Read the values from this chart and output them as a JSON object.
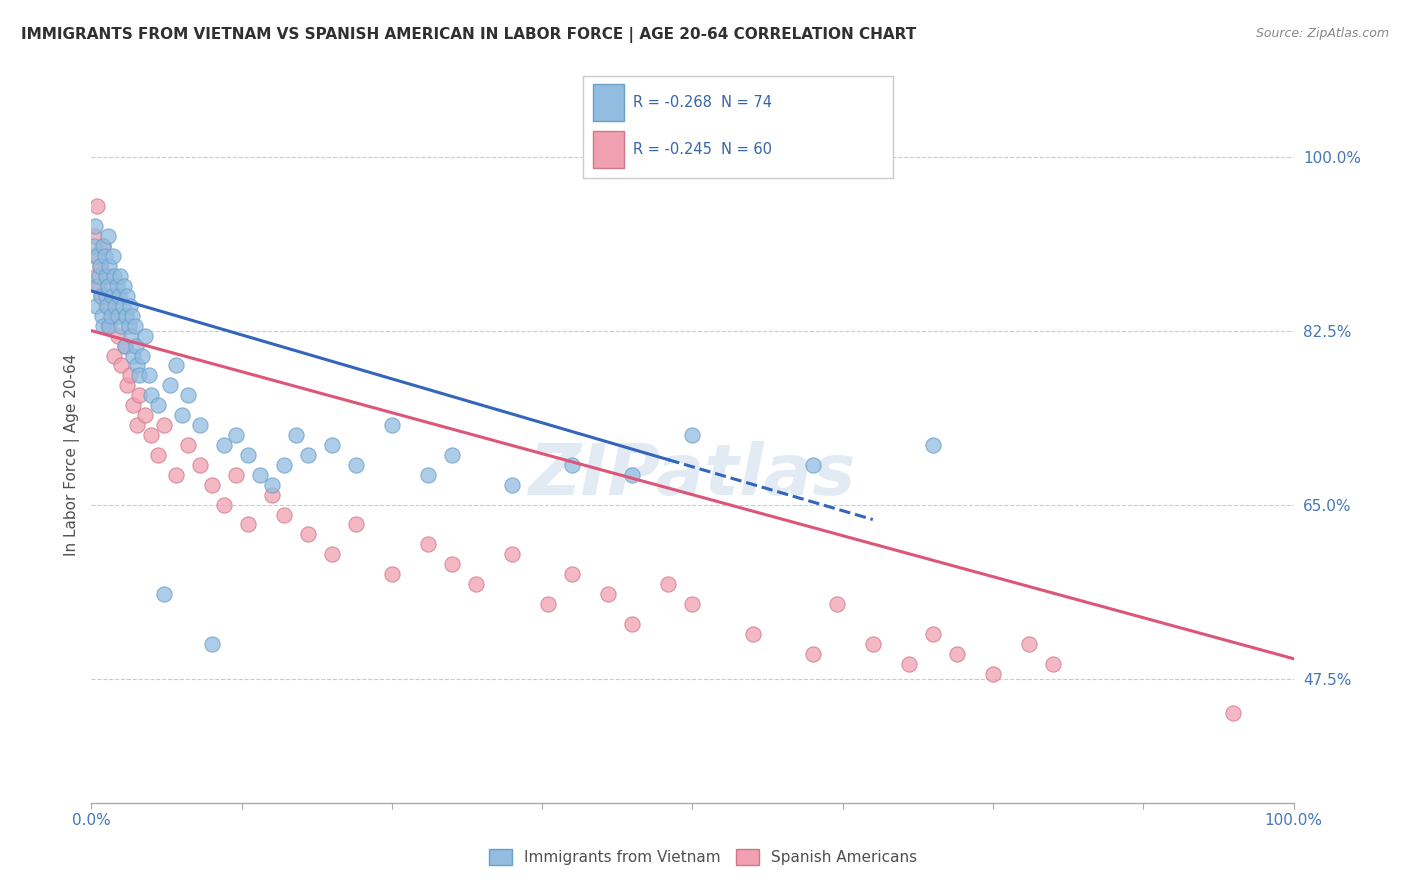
{
  "title": "IMMIGRANTS FROM VIETNAM VS SPANISH AMERICAN IN LABOR FORCE | AGE 20-64 CORRELATION CHART",
  "source": "Source: ZipAtlas.com",
  "ylabel": "In Labor Force | Age 20-64",
  "xlim": [
    0.0,
    100.0
  ],
  "ylim": [
    35.0,
    105.0
  ],
  "right_yticks": [
    47.5,
    65.0,
    82.5,
    100.0
  ],
  "vietnam_color": "#92bce0",
  "vietnam_edge": "#6a9fc8",
  "spanish_color": "#f0a0b0",
  "spanish_edge": "#d07888",
  "trend_vietnam_color": "#3366bb",
  "trend_spanish_color": "#dd5577",
  "background_color": "#ffffff",
  "grid_color": "#cccccc",
  "watermark": "ZIPatlas",
  "title_color": "#303030",
  "axis_color": "#4477bb",
  "legend_r_color": "#3366aa",
  "vietnam_x": [
    0.2,
    0.3,
    0.4,
    0.5,
    0.5,
    0.6,
    0.7,
    0.8,
    0.9,
    1.0,
    1.0,
    1.1,
    1.2,
    1.2,
    1.3,
    1.4,
    1.4,
    1.5,
    1.5,
    1.6,
    1.7,
    1.8,
    1.9,
    2.0,
    2.1,
    2.2,
    2.3,
    2.4,
    2.5,
    2.6,
    2.7,
    2.8,
    2.9,
    3.0,
    3.1,
    3.2,
    3.3,
    3.4,
    3.5,
    3.6,
    3.7,
    3.8,
    4.0,
    4.2,
    4.5,
    4.8,
    5.0,
    5.5,
    6.0,
    6.5,
    7.0,
    7.5,
    8.0,
    9.0,
    10.0,
    11.0,
    12.0,
    13.0,
    14.0,
    15.0,
    16.0,
    17.0,
    18.0,
    20.0,
    22.0,
    25.0,
    28.0,
    30.0,
    35.0,
    40.0,
    45.0,
    50.0,
    60.0,
    70.0
  ],
  "vietnam_y": [
    91.0,
    93.0,
    85.0,
    90.0,
    87.0,
    88.0,
    89.0,
    86.0,
    84.0,
    91.0,
    83.0,
    90.0,
    88.0,
    86.0,
    85.0,
    92.0,
    87.0,
    89.0,
    83.0,
    84.0,
    86.0,
    90.0,
    88.0,
    85.0,
    87.0,
    84.0,
    86.0,
    88.0,
    83.0,
    85.0,
    87.0,
    81.0,
    84.0,
    86.0,
    83.0,
    85.0,
    82.0,
    84.0,
    80.0,
    83.0,
    81.0,
    79.0,
    78.0,
    80.0,
    82.0,
    78.0,
    76.0,
    75.0,
    56.0,
    77.0,
    79.0,
    74.0,
    76.0,
    73.0,
    51.0,
    71.0,
    72.0,
    70.0,
    68.0,
    67.0,
    69.0,
    72.0,
    70.0,
    71.0,
    69.0,
    73.0,
    68.0,
    70.0,
    67.0,
    69.0,
    68.0,
    72.0,
    69.0,
    71.0
  ],
  "spanish_x": [
    0.2,
    0.3,
    0.4,
    0.5,
    0.6,
    0.7,
    0.8,
    1.0,
    1.2,
    1.4,
    1.5,
    1.7,
    1.9,
    2.0,
    2.2,
    2.5,
    2.8,
    3.0,
    3.2,
    3.5,
    3.8,
    4.0,
    4.5,
    5.0,
    5.5,
    6.0,
    7.0,
    8.0,
    9.0,
    10.0,
    11.0,
    12.0,
    13.0,
    15.0,
    16.0,
    18.0,
    20.0,
    22.0,
    25.0,
    28.0,
    30.0,
    32.0,
    35.0,
    38.0,
    40.0,
    43.0,
    45.0,
    48.0,
    50.0,
    55.0,
    60.0,
    62.0,
    65.0,
    68.0,
    70.0,
    72.0,
    75.0,
    78.0,
    80.0,
    95.0
  ],
  "spanish_y": [
    92.0,
    90.0,
    88.0,
    95.0,
    87.0,
    89.0,
    86.0,
    91.0,
    85.0,
    83.0,
    88.0,
    84.0,
    80.0,
    86.0,
    82.0,
    79.0,
    81.0,
    77.0,
    78.0,
    75.0,
    73.0,
    76.0,
    74.0,
    72.0,
    70.0,
    73.0,
    68.0,
    71.0,
    69.0,
    67.0,
    65.0,
    68.0,
    63.0,
    66.0,
    64.0,
    62.0,
    60.0,
    63.0,
    58.0,
    61.0,
    59.0,
    57.0,
    60.0,
    55.0,
    58.0,
    56.0,
    53.0,
    57.0,
    55.0,
    52.0,
    50.0,
    55.0,
    51.0,
    49.0,
    52.0,
    50.0,
    48.0,
    51.0,
    49.0,
    44.0
  ],
  "viet_trend_x0": 0.0,
  "viet_trend_y0": 86.5,
  "viet_trend_x1": 65.0,
  "viet_trend_y1": 63.5,
  "viet_solid_end_x": 48.0,
  "span_trend_x0": 0.0,
  "span_trend_y0": 82.5,
  "span_trend_x1": 100.0,
  "span_trend_y1": 49.5
}
